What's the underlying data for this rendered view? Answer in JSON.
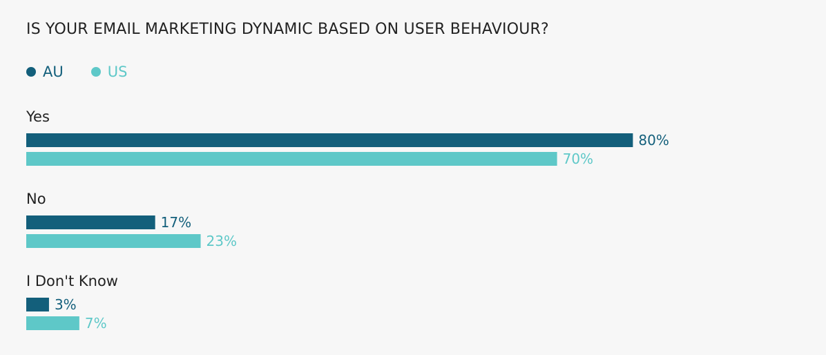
{
  "chart_data": {
    "type": "bar",
    "orientation": "horizontal",
    "title": "IS YOUR EMAIL MARKETING DYNAMIC BASED ON USER BEHAVIOUR?",
    "categories": [
      "Yes",
      "No",
      "I Don't Know"
    ],
    "series": [
      {
        "name": "AU",
        "values": [
          80,
          17,
          3
        ],
        "labels": [
          "80%",
          "17%",
          "3%"
        ],
        "color": "#135f7b"
      },
      {
        "name": "US",
        "values": [
          70,
          23,
          7
        ],
        "labels": [
          "70%",
          "23%",
          "7%"
        ],
        "color": "#5ec8c8"
      }
    ],
    "xlim": [
      0,
      100
    ],
    "legend": "top-left",
    "grid": false
  }
}
